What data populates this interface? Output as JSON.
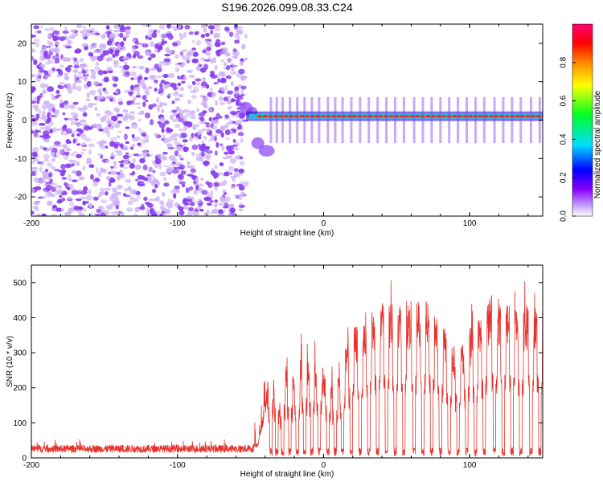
{
  "figure_title": "S196.2026.099.08.33.C24",
  "colors": {
    "snr_line": "#e8312a",
    "axis": "#000000",
    "noise_purple": "#8a3ff0",
    "noise_light": "#cdb2f4",
    "ridge_red": "#ff2200",
    "ridge_green": "#22cc66",
    "ridge_cyan": "#22ccee",
    "ridge_blue": "#1a00d0"
  },
  "chart_data": [
    {
      "type": "heatmap",
      "title": "",
      "xlabel": "Height of straight line (km)",
      "ylabel": "Frequency (Hz)",
      "xlim": [
        -200,
        150
      ],
      "ylim": [
        -25,
        25
      ],
      "xticks": [
        -200,
        -100,
        0,
        100
      ],
      "yticks": [
        -20,
        -10,
        0,
        10,
        20
      ],
      "xtick_labels": [
        "-200",
        "-100",
        "0",
        "100"
      ],
      "ytick_labels": [
        "-20",
        "-10",
        "0",
        "10",
        "20"
      ],
      "noise_region_x": [
        -200,
        -53
      ],
      "onset_x": -53,
      "ridge_frequency_hz": 1,
      "colorbar": {
        "label": "Normalized spectral amplitude",
        "range": [
          0,
          1
        ],
        "ticks": [
          0,
          0.2,
          0.4,
          0.6,
          0.8
        ],
        "tick_labels": [
          "0.0",
          "0.2",
          "0.4",
          "0.6",
          "0.8"
        ],
        "colormap": [
          "#ffffff",
          "#8800ff",
          "#0000ff",
          "#00ffff",
          "#00ff00",
          "#ffff00",
          "#ff8800",
          "#ff0000",
          "#ff0088"
        ]
      }
    },
    {
      "type": "line",
      "title": "",
      "xlabel": "Height of straight line (km)",
      "ylabel": "SNR (10 * v/v)",
      "xlim": [
        -200,
        150
      ],
      "ylim": [
        0,
        550
      ],
      "xticks": [
        -200,
        -100,
        0,
        100
      ],
      "yticks": [
        0,
        100,
        200,
        300,
        400,
        500
      ],
      "xtick_labels": [
        "-200",
        "-100",
        "0",
        "100"
      ],
      "ytick_labels": [
        "0",
        "100",
        "200",
        "300",
        "400",
        "500"
      ],
      "series": [
        {
          "name": "SNR",
          "x": [
            -200,
            -150,
            -100,
            -60,
            -45,
            -40,
            -35,
            -30,
            -25,
            -20,
            -15,
            -10,
            -5,
            0,
            5,
            10,
            15,
            20,
            25,
            30,
            40,
            50,
            60,
            70,
            75,
            80,
            85,
            90,
            95,
            100,
            105,
            110,
            115,
            120,
            125,
            130,
            140,
            150
          ],
          "y": [
            25,
            25,
            25,
            25,
            40,
            150,
            240,
            170,
            240,
            210,
            260,
            260,
            250,
            220,
            200,
            220,
            280,
            340,
            340,
            380,
            400,
            400,
            395,
            400,
            390,
            350,
            320,
            280,
            290,
            330,
            350,
            380,
            420,
            400,
            420,
            390,
            390,
            390
          ],
          "dropouts_x": [
            -36,
            -32,
            -28,
            -23,
            -18,
            -13,
            -8,
            -3,
            3,
            8,
            13,
            19,
            25,
            31,
            37,
            43,
            49,
            55,
            62,
            68,
            74,
            80,
            86,
            92,
            98,
            104,
            110,
            117,
            123,
            129,
            135,
            142,
            148
          ]
        }
      ]
    }
  ]
}
